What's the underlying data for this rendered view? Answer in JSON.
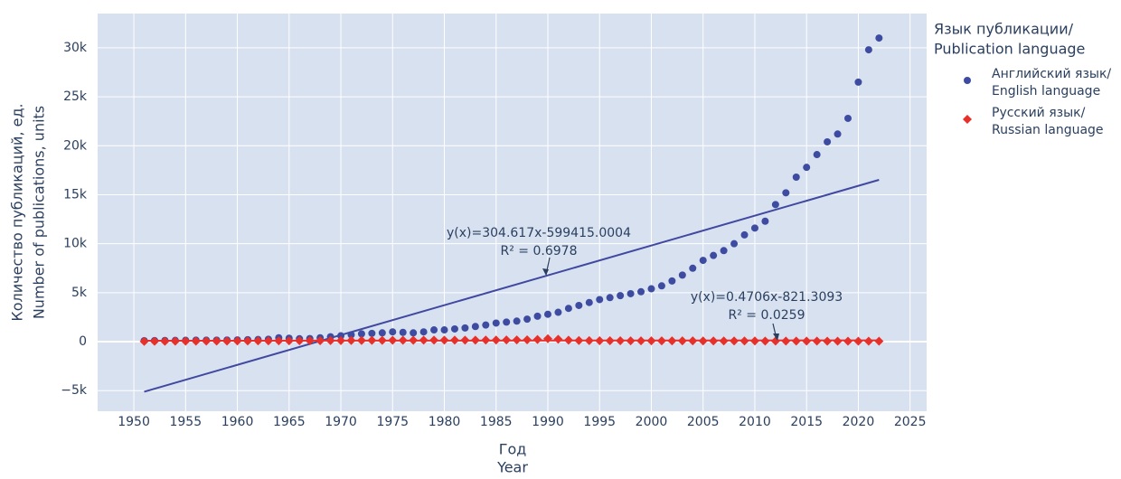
{
  "chart_data": {
    "type": "scatter",
    "x_label": [
      "Год",
      "Year"
    ],
    "y_label": [
      "Количество публикаций, ед.",
      "Number of publications, units"
    ],
    "legend_title": [
      "Язык публикации/",
      "Publication language"
    ],
    "x": [
      1951,
      1952,
      1953,
      1954,
      1955,
      1956,
      1957,
      1958,
      1959,
      1960,
      1961,
      1962,
      1963,
      1964,
      1965,
      1966,
      1967,
      1968,
      1969,
      1970,
      1971,
      1972,
      1973,
      1974,
      1975,
      1976,
      1977,
      1978,
      1979,
      1980,
      1981,
      1982,
      1983,
      1984,
      1985,
      1986,
      1987,
      1988,
      1989,
      1990,
      1991,
      1992,
      1993,
      1994,
      1995,
      1996,
      1997,
      1998,
      1999,
      2000,
      2001,
      2002,
      2003,
      2004,
      2005,
      2006,
      2007,
      2008,
      2009,
      2010,
      2011,
      2012,
      2013,
      2014,
      2015,
      2016,
      2017,
      2018,
      2019,
      2020,
      2021,
      2022
    ],
    "series": [
      {
        "name": [
          "Английский язык/",
          "English language"
        ],
        "color": "#3d4ba0",
        "marker": "circle",
        "values": [
          100,
          110,
          120,
          130,
          140,
          150,
          150,
          160,
          170,
          180,
          200,
          220,
          250,
          400,
          350,
          300,
          320,
          400,
          500,
          600,
          700,
          800,
          850,
          900,
          1000,
          950,
          900,
          1000,
          1200,
          1200,
          1300,
          1400,
          1550,
          1700,
          1900,
          2000,
          2100,
          2300,
          2600,
          2800,
          3000,
          3400,
          3700,
          4000,
          4300,
          4500,
          4700,
          4900,
          5100,
          5400,
          5700,
          6200,
          6800,
          7500,
          8300,
          8800,
          9300,
          10000,
          10900,
          11600,
          12300,
          14000,
          15200,
          16800,
          17800,
          19100,
          20400,
          21200,
          22800,
          26500,
          29800,
          31000
        ]
      },
      {
        "name": [
          "Русский язык/",
          "Russian language"
        ],
        "color": "#e8302a",
        "marker": "diamond",
        "values": [
          30,
          40,
          40,
          50,
          50,
          50,
          60,
          60,
          60,
          70,
          70,
          80,
          80,
          90,
          90,
          100,
          100,
          100,
          110,
          110,
          120,
          120,
          130,
          130,
          140,
          140,
          140,
          150,
          150,
          150,
          150,
          160,
          160,
          170,
          170,
          180,
          180,
          190,
          220,
          300,
          250,
          150,
          120,
          110,
          100,
          100,
          100,
          90,
          90,
          90,
          80,
          80,
          80,
          80,
          70,
          70,
          70,
          70,
          70,
          70,
          60,
          60,
          60,
          60,
          60,
          60,
          50,
          50,
          50,
          50,
          50,
          50
        ]
      }
    ],
    "trendlines": [
      {
        "color": "#4048a0",
        "x": [
          1951,
          2022
        ],
        "values": [
          -5107,
          16521
        ],
        "equation": "y(x)=304.617x-599415.0004",
        "r2": "R² = 0.6978"
      },
      {
        "color": "#e8302a",
        "x": [
          1951,
          2022
        ],
        "values": [
          97,
          130
        ],
        "equation": "y(x)=0.4706x-821.3093",
        "r2": "R² = 0.0259"
      }
    ],
    "xlim": [
      1946.5,
      2026.6
    ],
    "xticks": [
      1950,
      1955,
      1960,
      1965,
      1970,
      1975,
      1980,
      1985,
      1990,
      1995,
      2000,
      2005,
      2010,
      2015,
      2020,
      2025
    ],
    "ylim": [
      -7100,
      33500
    ],
    "yticks": [
      {
        "value": -5000,
        "label": "−5k"
      },
      0,
      {
        "value": 5000,
        "label": "5k"
      },
      {
        "value": 10000,
        "label": "10k"
      },
      {
        "value": 15000,
        "label": "15k"
      },
      {
        "value": 20000,
        "label": "20k"
      },
      {
        "value": 25000,
        "label": "25k"
      },
      {
        "value": 30000,
        "label": "30k"
      }
    ],
    "grid": true
  }
}
